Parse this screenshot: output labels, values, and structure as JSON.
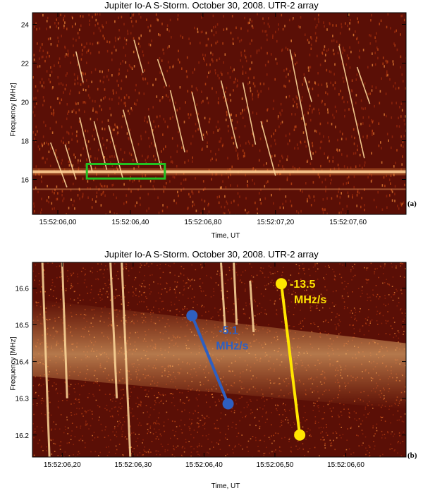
{
  "colors": {
    "background_dark": "#5a0f06",
    "background_mid": "#9a2a0c",
    "burst_bright": "#ffd99a",
    "box_green": "#22c022",
    "blue_drift": "#2e5fc0",
    "yellow_drift": "#ffe600"
  },
  "chart_data": [
    {
      "type": "heatmap",
      "title": "Jupiter Io-A S-Storm. October 30, 2008. UTR-2 array",
      "xlabel": "Time, UT",
      "ylabel": "Frequency [MHz]",
      "panel": "(a)",
      "xlim": [
        5.86,
        7.92
      ],
      "ylim": [
        14.2,
        24.6
      ],
      "x_ticks": [
        {
          "value": 6.0,
          "label": "15:52:06,00"
        },
        {
          "value": 6.4,
          "label": "15:52:06,40"
        },
        {
          "value": 6.8,
          "label": "15:52:06,80"
        },
        {
          "value": 7.2,
          "label": "15:52:07,20"
        },
        {
          "value": 7.6,
          "label": "15:52:07,60"
        }
      ],
      "y_ticks": [
        16,
        18,
        20,
        22,
        24
      ],
      "highlight_box": {
        "x": [
          6.16,
          6.59
        ],
        "y": [
          16.05,
          16.8
        ],
        "color": "#22c022"
      },
      "bright_band_mhz": 16.4,
      "burst_lines": [
        {
          "t0": 6.12,
          "f0": 19.2,
          "t1": 6.19,
          "f1": 16.4
        },
        {
          "t0": 6.2,
          "f0": 19.0,
          "t1": 6.27,
          "f1": 16.5
        },
        {
          "t0": 6.28,
          "f0": 18.8,
          "t1": 6.36,
          "f1": 16.0
        },
        {
          "t0": 6.36,
          "f0": 19.6,
          "t1": 6.44,
          "f1": 16.8
        },
        {
          "t0": 6.5,
          "f0": 19.3,
          "t1": 6.57,
          "f1": 16.5
        },
        {
          "t0": 6.62,
          "f0": 20.6,
          "t1": 6.7,
          "f1": 17.4
        },
        {
          "t0": 6.74,
          "f0": 20.5,
          "t1": 6.8,
          "f1": 18.0
        },
        {
          "t0": 6.9,
          "f0": 21.1,
          "t1": 6.99,
          "f1": 17.6
        },
        {
          "t0": 7.02,
          "f0": 21.0,
          "t1": 7.09,
          "f1": 17.8
        },
        {
          "t0": 7.12,
          "f0": 19.0,
          "t1": 7.2,
          "f1": 16.2
        },
        {
          "t0": 7.28,
          "f0": 22.7,
          "t1": 7.4,
          "f1": 17.0
        },
        {
          "t0": 7.55,
          "f0": 22.9,
          "t1": 7.69,
          "f1": 17.1
        },
        {
          "t0": 7.65,
          "f0": 21.8,
          "t1": 7.72,
          "f1": 19.9
        },
        {
          "t0": 7.36,
          "f0": 21.3,
          "t1": 7.4,
          "f1": 20.0
        },
        {
          "t0": 5.96,
          "f0": 17.9,
          "t1": 6.05,
          "f1": 15.6
        },
        {
          "t0": 6.04,
          "f0": 17.8,
          "t1": 6.1,
          "f1": 16.0
        },
        {
          "t0": 6.1,
          "f0": 22.6,
          "t1": 6.14,
          "f1": 21.0
        },
        {
          "t0": 6.42,
          "f0": 23.2,
          "t1": 6.47,
          "f1": 21.5
        },
        {
          "t0": 6.55,
          "f0": 22.2,
          "t1": 6.6,
          "f1": 20.8
        }
      ]
    },
    {
      "type": "heatmap",
      "title": "Jupiter Io-A S-Storm. October 30, 2008. UTR-2 array",
      "xlabel": "Time, UT",
      "ylabel": "Frequency [MHz]",
      "panel": "(b)",
      "xlim": [
        6.158,
        6.685
      ],
      "ylim": [
        16.14,
        16.67
      ],
      "x_ticks": [
        {
          "value": 6.2,
          "label": "15:52:06,20"
        },
        {
          "value": 6.3,
          "label": "15:52:06,30"
        },
        {
          "value": 6.4,
          "label": "15:52:06,40"
        },
        {
          "value": 6.5,
          "label": "15:52:06,50"
        },
        {
          "value": 6.6,
          "label": "15:52:06,60"
        }
      ],
      "y_ticks": [
        16.2,
        16.3,
        16.4,
        16.5,
        16.6
      ],
      "drift_lines": [
        {
          "name": "-5.1",
          "unit": "MHz/s",
          "t0": 6.383,
          "f0": 16.525,
          "t1": 6.434,
          "f1": 16.285,
          "color": "#2e5fc0"
        },
        {
          "name": "-13.5",
          "unit": "MHz/s",
          "t0": 6.509,
          "f0": 16.612,
          "t1": 6.535,
          "f1": 16.2,
          "color": "#ffe600"
        }
      ],
      "streaks": [
        {
          "t0": 6.172,
          "f0": 16.67,
          "t1": 6.182,
          "f1": 16.14
        },
        {
          "t0": 6.2,
          "f0": 16.67,
          "t1": 6.207,
          "f1": 16.3
        },
        {
          "t0": 6.268,
          "f0": 16.67,
          "t1": 6.277,
          "f1": 16.3
        },
        {
          "t0": 6.284,
          "f0": 16.67,
          "t1": 6.296,
          "f1": 16.14
        },
        {
          "t0": 6.424,
          "f0": 16.67,
          "t1": 6.43,
          "f1": 16.48
        },
        {
          "t0": 6.442,
          "f0": 16.67,
          "t1": 6.446,
          "f1": 16.5
        },
        {
          "t0": 6.465,
          "f0": 16.62,
          "t1": 6.47,
          "f1": 16.48
        }
      ]
    }
  ]
}
